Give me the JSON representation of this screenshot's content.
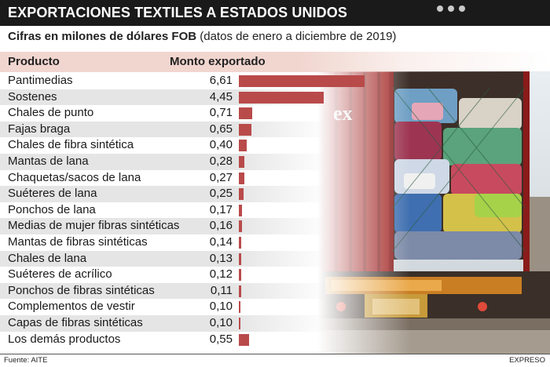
{
  "title": "EXPORTACIONES TEXTILES A ESTADOS UNIDOS",
  "subtitle_bold": "Cifras en milones de dólares FOB",
  "subtitle_rest": "(datos de enero a diciembre de 2019)",
  "source": "Fuente: AITE",
  "credit": "EXPRESO",
  "colors": {
    "bar": "#b94a4a",
    "header_band": "#f1d6cf",
    "row_band": "#e5e5e5",
    "title_bar": "#1a1a1a"
  },
  "chart_data": {
    "type": "bar",
    "orientation": "horizontal",
    "header_product": "Producto",
    "header_amount": "Monto exportado",
    "categories": [
      "Pantimedias",
      "Sostenes",
      "Chales de punto",
      "Fajas braga",
      "Chales de fibra sintética",
      "Mantas de lana",
      "Chaquetas/sacos de lana",
      "Suéteres de lana",
      "Ponchos de lana",
      "Medias de mujer fibras sintéticas",
      "Mantas de fibras sintéticas",
      "Chales de lana",
      "Suéteres de acrílico",
      "Ponchos de fibras sintéticas",
      "Complementos de vestir",
      "Capas de fibras sintéticas",
      "Los demás productos"
    ],
    "values": [
      6.61,
      4.45,
      0.71,
      0.65,
      0.4,
      0.28,
      0.27,
      0.25,
      0.17,
      0.16,
      0.14,
      0.13,
      0.12,
      0.11,
      0.1,
      0.1,
      0.55
    ],
    "value_labels": [
      "6,61",
      "4,45",
      "0,71",
      "0,65",
      "0,40",
      "0,28",
      "0,27",
      "0,25",
      "0,17",
      "0,16",
      "0,14",
      "0,13",
      "0,12",
      "0,11",
      "0,10",
      "0,10",
      "0,55"
    ]
  }
}
